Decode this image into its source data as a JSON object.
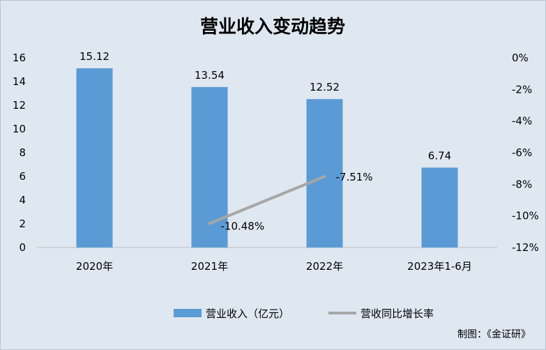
{
  "chart_data": {
    "type": "bar",
    "title": "营业收入变动趋势",
    "categories": [
      "2020年",
      "2021年",
      "2022年",
      "2023年1-6月"
    ],
    "series": [
      {
        "name": "营业收入（亿元）",
        "type": "bar",
        "axis": "left",
        "values": [
          15.12,
          13.54,
          12.52,
          6.74
        ],
        "labels": [
          "15.12",
          "13.54",
          "12.52",
          "6.74"
        ],
        "color": "#5b9bd5"
      },
      {
        "name": "营收同比增长率",
        "type": "line",
        "axis": "right",
        "values": [
          null,
          -10.48,
          -7.51,
          null
        ],
        "labels": [
          "",
          "-10.48%",
          "-7.51%",
          ""
        ],
        "color": "#a6a6a6"
      }
    ],
    "left_axis": {
      "ylim": [
        0,
        16
      ],
      "ticks": [
        0,
        2,
        4,
        6,
        8,
        10,
        12,
        14,
        16
      ],
      "tick_labels": [
        "0",
        "2",
        "4",
        "6",
        "8",
        "10",
        "12",
        "14",
        "16"
      ]
    },
    "right_axis": {
      "ylim": [
        -12,
        0
      ],
      "ticks": [
        0,
        -2,
        -4,
        -6,
        -8,
        -10,
        -12
      ],
      "tick_labels": [
        "0%",
        "-2%",
        "-4%",
        "-6%",
        "-8%",
        "-10%",
        "-12%"
      ]
    },
    "grid": false,
    "legend_position": "bottom"
  },
  "credit": "制图：《金证研》"
}
